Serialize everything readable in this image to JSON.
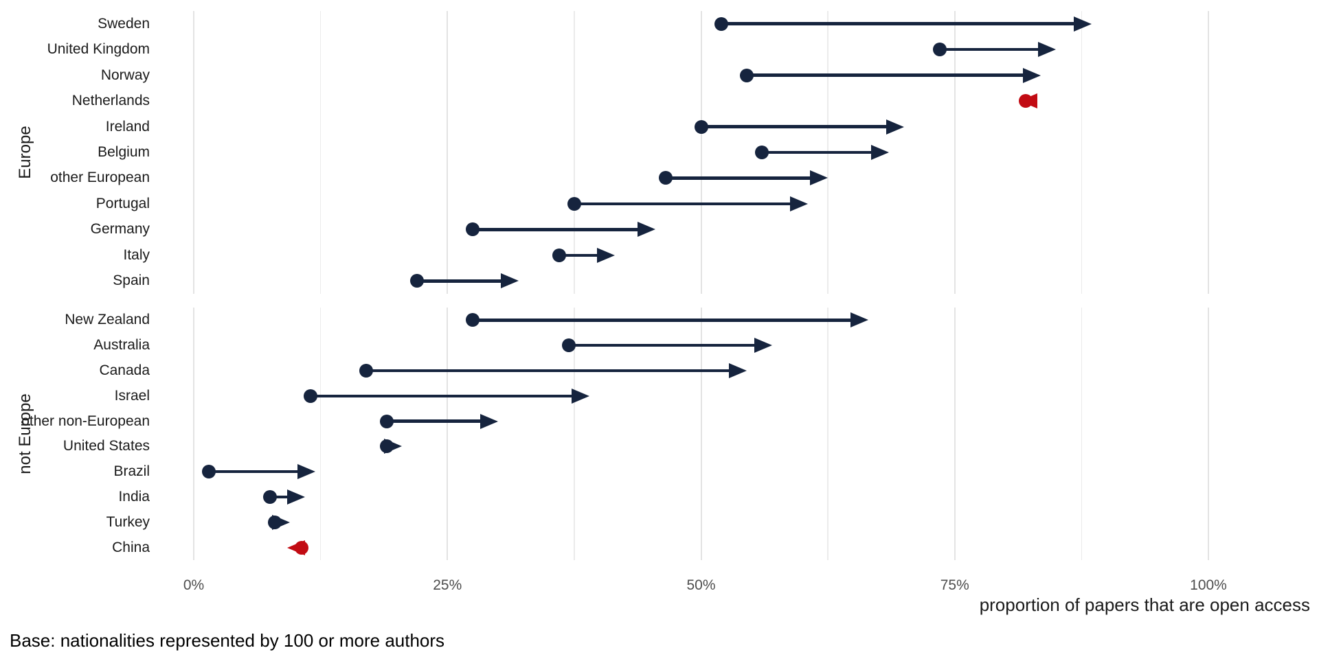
{
  "chart_data": {
    "type": "dumbbell",
    "title": "",
    "xlabel": "proportion of papers that are open access",
    "caption": "Base: nationalities represented by 100 or more authors",
    "x_ticks": [
      {
        "value": 0,
        "label": "0%"
      },
      {
        "value": 25,
        "label": "25%"
      },
      {
        "value": 50,
        "label": "50%"
      },
      {
        "value": 75,
        "label": "75%"
      },
      {
        "value": 100,
        "label": "100%"
      }
    ],
    "x_minor_gridlines": [
      12.5,
      37.5,
      62.5,
      87.5
    ],
    "xlim": [
      0,
      100
    ],
    "grid": "vertical-only",
    "legend": "none",
    "marker_style": "dot at start value, arrowhead at end value",
    "colors": {
      "increase": "#16243E",
      "decrease": "#C20B13",
      "gridline_major": "#E3E3E3",
      "gridline_minor": "#EBEBEB",
      "tick_text": "#4D4D4D",
      "label_text": "#1A1A1A"
    },
    "groups": [
      {
        "label": "Europe",
        "rows": [
          {
            "country": "Sweden",
            "start": 52,
            "end": 88.5,
            "direction": "increase"
          },
          {
            "country": "United Kingdom",
            "start": 73.5,
            "end": 85,
            "direction": "increase"
          },
          {
            "country": "Norway",
            "start": 54.5,
            "end": 83.5,
            "direction": "increase"
          },
          {
            "country": "Netherlands",
            "start": 82,
            "end": 81.4,
            "direction": "decrease"
          },
          {
            "country": "Ireland",
            "start": 50,
            "end": 70,
            "direction": "increase"
          },
          {
            "country": "Belgium",
            "start": 56,
            "end": 68.5,
            "direction": "increase"
          },
          {
            "country": "other European",
            "start": 46.5,
            "end": 62.5,
            "direction": "increase"
          },
          {
            "country": "Portugal",
            "start": 37.5,
            "end": 60.5,
            "direction": "increase"
          },
          {
            "country": "Germany",
            "start": 27.5,
            "end": 45.5,
            "direction": "increase"
          },
          {
            "country": "Italy",
            "start": 36,
            "end": 41.5,
            "direction": "increase"
          },
          {
            "country": "Spain",
            "start": 22,
            "end": 32,
            "direction": "increase"
          }
        ]
      },
      {
        "label": "not Europe",
        "rows": [
          {
            "country": "New Zealand",
            "start": 27.5,
            "end": 66.5,
            "direction": "increase"
          },
          {
            "country": "Australia",
            "start": 37,
            "end": 57,
            "direction": "increase"
          },
          {
            "country": "Canada",
            "start": 17,
            "end": 54.5,
            "direction": "increase"
          },
          {
            "country": "Israel",
            "start": 11.5,
            "end": 39,
            "direction": "increase"
          },
          {
            "country": "other non-European",
            "start": 19,
            "end": 30,
            "direction": "increase"
          },
          {
            "country": "United States",
            "start": 19,
            "end": 20.5,
            "direction": "increase"
          },
          {
            "country": "Brazil",
            "start": 1.5,
            "end": 12,
            "direction": "increase"
          },
          {
            "country": "India",
            "start": 7.5,
            "end": 11,
            "direction": "increase"
          },
          {
            "country": "Turkey",
            "start": 8,
            "end": 9.5,
            "direction": "increase"
          },
          {
            "country": "China",
            "start": 10.6,
            "end": 9.2,
            "direction": "decrease"
          }
        ]
      }
    ]
  }
}
